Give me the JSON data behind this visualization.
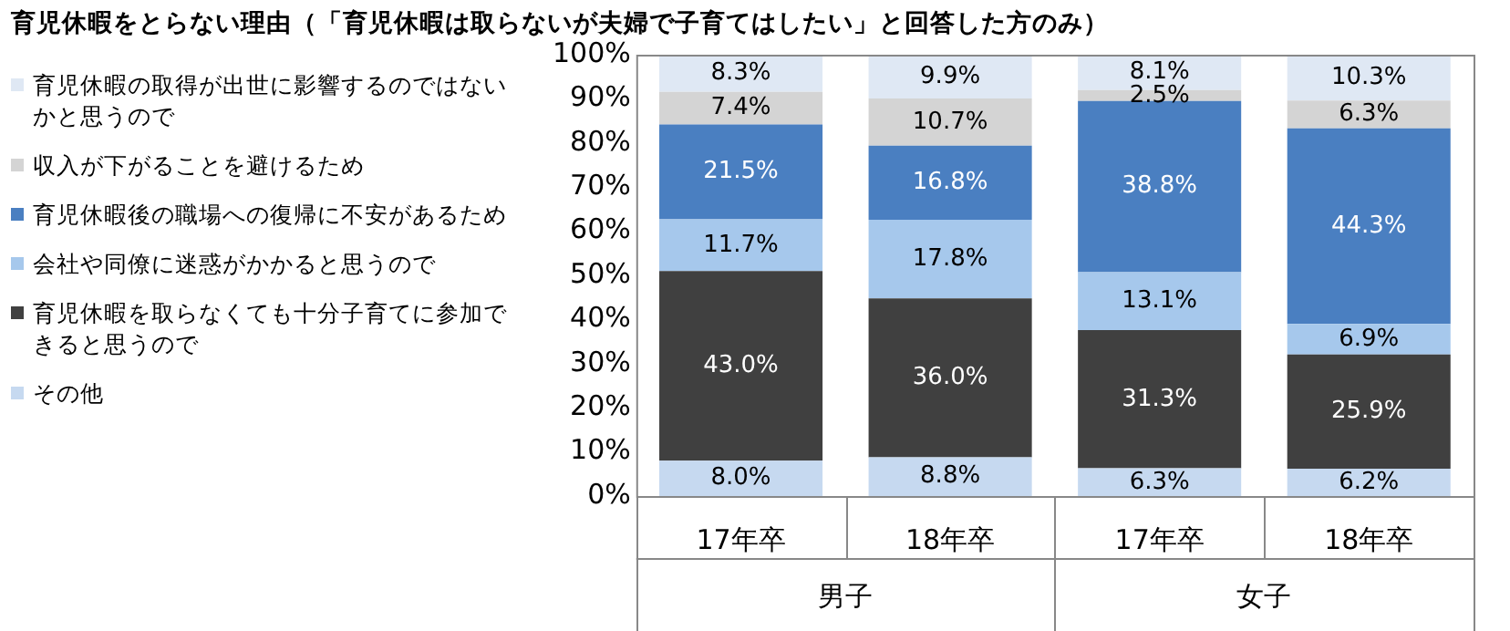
{
  "chart_data": {
    "type": "bar",
    "stacked": true,
    "title": "育児休暇をとらない理由（「育児休暇は取らないが夫婦で子育てはしたい」と回答した方のみ）",
    "categories": [
      "17年卒",
      "18年卒",
      "17年卒",
      "18年卒"
    ],
    "series": [
      {
        "name": "その他",
        "color": "#c6d9f0",
        "values": [
          8.0,
          8.8,
          6.3,
          6.2
        ],
        "value_labels": [
          "8.0%",
          "8.8%",
          "6.3%",
          "6.2%"
        ]
      },
      {
        "name": "育児休暇を取らなくても十分子育てに参加できると思うので",
        "color": "#404040",
        "values": [
          43.0,
          36.0,
          31.3,
          25.9
        ],
        "value_labels": [
          "43.0%",
          "36.0%",
          "31.3%",
          "25.9%"
        ]
      },
      {
        "name": "会社や同僚に迷惑がかかると思うので",
        "color": "#a6c8ec",
        "values": [
          11.7,
          17.8,
          13.1,
          6.9
        ],
        "value_labels": [
          "11.7%",
          "17.8%",
          "13.1%",
          "6.9%"
        ]
      },
      {
        "name": "育児休暇後の職場への復帰に不安があるため",
        "color": "#4a7fc1",
        "values": [
          21.5,
          16.8,
          38.8,
          44.3
        ],
        "value_labels": [
          "21.5%",
          "16.8%",
          "38.8%",
          "44.3%"
        ]
      },
      {
        "name": "収入が下がることを避けるため",
        "color": "#d4d4d4",
        "values": [
          7.4,
          10.7,
          2.5,
          6.3
        ],
        "value_labels": [
          "7.4%",
          "10.7%",
          "2.5%",
          "6.3%"
        ]
      },
      {
        "name": "育児休暇の取得が出世に影響するのではないかと思うので",
        "color": "#dfe8f4",
        "values": [
          8.3,
          9.9,
          8.1,
          10.3
        ],
        "value_labels": [
          "8.3%",
          "9.9%",
          "8.1%",
          "10.3%"
        ]
      }
    ],
    "ylim": [
      0,
      100
    ],
    "yticks": [
      {
        "value": 0,
        "label": "0%"
      },
      {
        "value": 10,
        "label": "10%"
      },
      {
        "value": 20,
        "label": "20%"
      },
      {
        "value": 30,
        "label": "30%"
      },
      {
        "value": 40,
        "label": "40%"
      },
      {
        "value": 50,
        "label": "50%"
      },
      {
        "value": 60,
        "label": "60%"
      },
      {
        "value": 70,
        "label": "70%"
      },
      {
        "value": 80,
        "label": "80%"
      },
      {
        "value": 90,
        "label": "90%"
      },
      {
        "value": 100,
        "label": "100%"
      }
    ],
    "legend": "left",
    "annotations": [
      "男子",
      "女子"
    ]
  }
}
